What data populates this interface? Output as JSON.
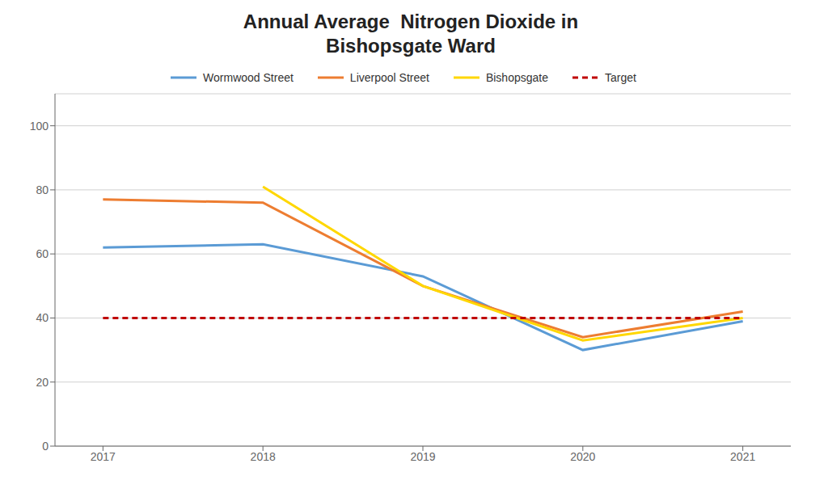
{
  "chart_data": {
    "type": "line",
    "title": "Annual Average  Nitrogen Dioxide in\nBishopsgate Ward",
    "x": [
      2017,
      2018,
      2019,
      2020,
      2021
    ],
    "xlim": [
      2016.7,
      2021.3
    ],
    "xticks": [
      2017,
      2018,
      2019,
      2020,
      2021
    ],
    "ylim": [
      0,
      110
    ],
    "yticks": [
      0,
      20,
      40,
      60,
      80,
      100
    ],
    "grid": true,
    "legend": "top",
    "series": [
      {
        "name": "Wormwood Street",
        "color": "#5B9BD5",
        "values": [
          62,
          63,
          53,
          30,
          39
        ]
      },
      {
        "name": "Liverpool Street",
        "color": "#ED7D31",
        "values": [
          77,
          76,
          50,
          34,
          42
        ]
      },
      {
        "name": "Bishopsgate",
        "color": "#FFD700",
        "values": [
          null,
          81,
          50,
          33,
          40
        ]
      },
      {
        "name": "Target",
        "color": "#C00000",
        "values": [
          40,
          40,
          40,
          40,
          40
        ],
        "line_style": "dashed"
      }
    ]
  }
}
